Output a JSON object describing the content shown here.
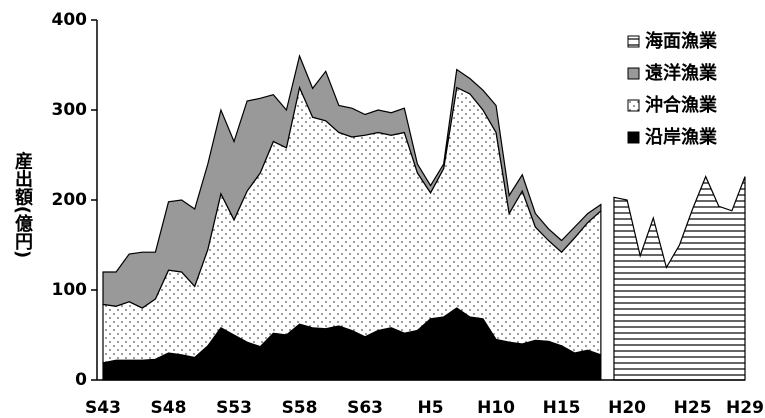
{
  "chart_data": {
    "type": "stacked_area",
    "y_label": "産出額(億円)",
    "categories": [
      "S43",
      null,
      null,
      null,
      null,
      "S48",
      null,
      null,
      null,
      null,
      "S53",
      null,
      null,
      null,
      null,
      "S58",
      null,
      null,
      null,
      null,
      "S63",
      null,
      null,
      null,
      null,
      "H5",
      null,
      null,
      null,
      null,
      "H10",
      null,
      null,
      null,
      null,
      "H15",
      null,
      null,
      null,
      null,
      "H20",
      null,
      null,
      null,
      null,
      "H25",
      null,
      null,
      null,
      "H29"
    ],
    "ylim": [
      0,
      400
    ],
    "yticks": [
      0,
      100,
      200,
      300,
      400
    ],
    "legend": "top-right",
    "series": [
      {
        "name": "沿岸漁業",
        "color": "#000000",
        "pattern": "solid",
        "values": [
          19,
          22,
          22,
          22,
          23,
          30,
          28,
          25,
          38,
          58,
          50,
          42,
          37,
          52,
          50,
          62,
          58,
          57,
          60,
          55,
          48,
          55,
          58,
          52,
          55,
          68,
          70,
          80,
          70,
          68,
          45,
          42,
          40,
          44,
          43,
          38,
          30,
          33,
          28,
          null,
          null,
          null,
          null,
          null,
          null,
          null,
          null,
          null,
          null,
          null
        ]
      },
      {
        "name": "沖合漁業",
        "color": "#ffffff",
        "pattern": "dots",
        "values": [
          65,
          60,
          65,
          58,
          67,
          92,
          92,
          79,
          107,
          149,
          128,
          168,
          193,
          213,
          208,
          263,
          234,
          231,
          215,
          215,
          224,
          220,
          214,
          223,
          175,
          140,
          165,
          245,
          248,
          232,
          230,
          143,
          170,
          126,
          112,
          104,
          128,
          142,
          160,
          null,
          null,
          null,
          null,
          null,
          null,
          null,
          null,
          null,
          null,
          null
        ]
      },
      {
        "name": "遠洋漁業",
        "color": "#999999",
        "pattern": "solid",
        "values": [
          36,
          38,
          53,
          62,
          52,
          76,
          80,
          86,
          95,
          93,
          87,
          100,
          83,
          52,
          42,
          35,
          32,
          55,
          30,
          32,
          23,
          25,
          25,
          27,
          10,
          8,
          5,
          20,
          17,
          22,
          30,
          20,
          18,
          15,
          13,
          13,
          12,
          10,
          7,
          null,
          null,
          null,
          null,
          null,
          null,
          null,
          null,
          null,
          null,
          null
        ]
      },
      {
        "name": "海面漁業",
        "color": "#ffffff",
        "pattern": "stripes",
        "values": [
          null,
          null,
          null,
          null,
          null,
          null,
          null,
          null,
          null,
          null,
          null,
          null,
          null,
          null,
          null,
          null,
          null,
          null,
          null,
          null,
          null,
          null,
          null,
          null,
          null,
          null,
          null,
          null,
          null,
          null,
          null,
          null,
          null,
          null,
          null,
          null,
          null,
          null,
          null,
          203,
          200,
          138,
          180,
          125,
          150,
          190,
          226,
          193,
          188,
          226
        ]
      }
    ]
  }
}
